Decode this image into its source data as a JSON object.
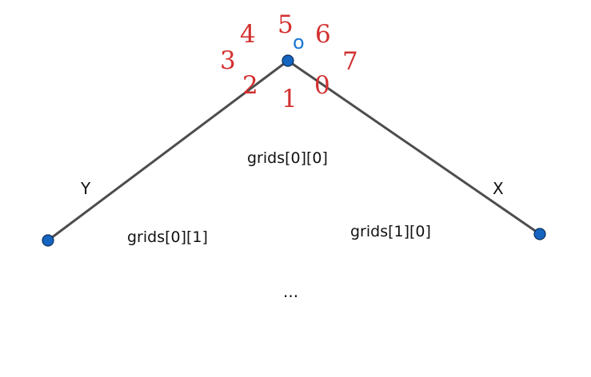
{
  "directions": [
    "0",
    "1",
    "2",
    "3",
    "4",
    "5",
    "6",
    "7"
  ],
  "origin_label": "o",
  "axes": {
    "x_label": "X",
    "y_label": "Y"
  },
  "grids": {
    "center": "grids[0][0]",
    "left": "grids[0][1]",
    "right": "grids[1][0]"
  },
  "ellipsis": "...",
  "colors": {
    "line": "#4d4d4d",
    "vertex": "#1565c0",
    "direction_numbers": "#d32f2f",
    "origin": "#1976d2"
  }
}
